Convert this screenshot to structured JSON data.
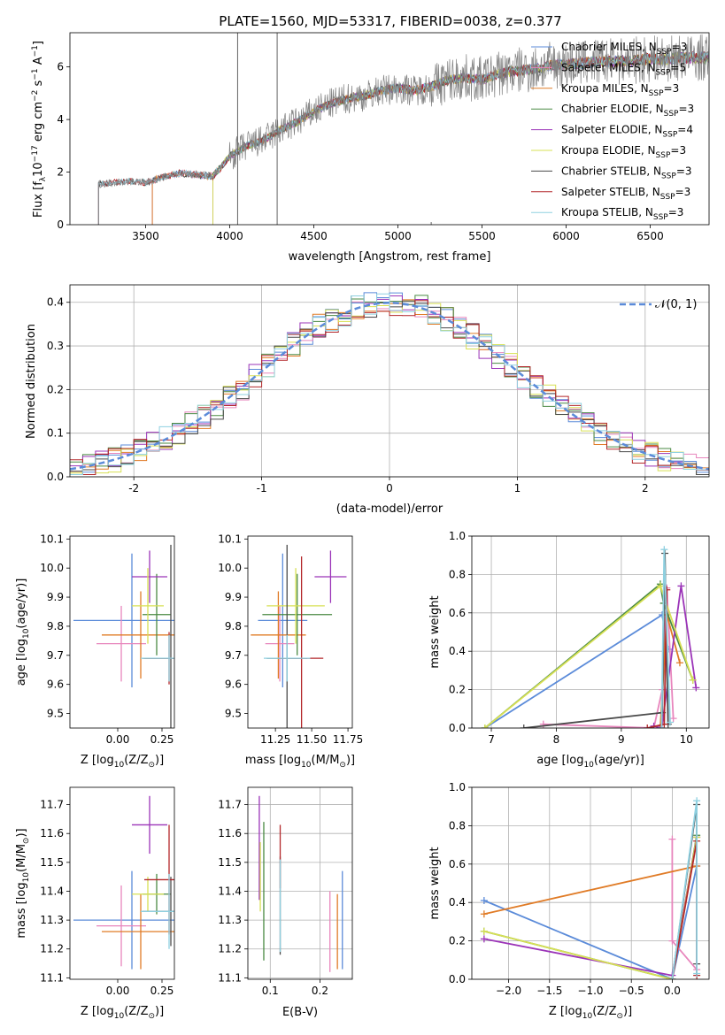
{
  "figure": {
    "title": "PLATE=1560, MJD=53317, FIBERID=0038, z=0.377"
  },
  "colors": {
    "Chabrier MILES": "#5b8bd9",
    "Salpeter MILES": "#e886bd",
    "Kroupa MILES": "#e07b26",
    "Chabrier ELODIE": "#4a8a43",
    "Salpeter ELODIE": "#9b34b8",
    "Kroupa ELODIE": "#d7e054",
    "Chabrier STELIB": "#4a4a4a",
    "Salpeter STELIB": "#b3272a",
    "Kroupa STELIB": "#8fd0e0",
    "data": "#808080",
    "normal": "#5b8bd9"
  },
  "chart_data": [
    {
      "id": "spectrum",
      "type": "line",
      "xlabel": "wavelength [Angstrom, rest frame]",
      "ylabel": "Flux [f$_\\lambda$10$^{-17}$ erg cm$^{-2}$ s$^{-1}$ A$^{-1}$]",
      "ylabel_parts": [
        "Flux [f",
        "λ",
        "10",
        "−17",
        " erg cm",
        "−2",
        " s",
        "−1",
        " A",
        "−1",
        "]"
      ],
      "xlim": [
        3050,
        6850
      ],
      "ylim": [
        0,
        7.3
      ],
      "xticks": [
        3500,
        4000,
        4500,
        5000,
        5500,
        6000,
        6500
      ],
      "yticks": [
        0,
        2,
        4,
        6
      ],
      "legend_position": "upper right",
      "legend": [
        {
          "label": "Chabrier MILES, N",
          "sub": "SSP",
          "eq": "=3",
          "color_key": "Chabrier MILES"
        },
        {
          "label": "Salpeter MILES, N",
          "sub": "SSP",
          "eq": "=5",
          "color_key": "Salpeter MILES"
        },
        {
          "label": "Kroupa MILES, N",
          "sub": "SSP",
          "eq": "=3",
          "color_key": "Kroupa MILES"
        },
        {
          "label": "Chabrier ELODIE, N",
          "sub": "SSP",
          "eq": "=3",
          "color_key": "Chabrier ELODIE"
        },
        {
          "label": "Salpeter ELODIE, N",
          "sub": "SSP",
          "eq": "=4",
          "color_key": "Salpeter ELODIE"
        },
        {
          "label": "Kroupa ELODIE, N",
          "sub": "SSP",
          "eq": "=3",
          "color_key": "Kroupa ELODIE"
        },
        {
          "label": "Chabrier STELIB, N",
          "sub": "SSP",
          "eq": "=3",
          "color_key": "Chabrier STELIB"
        },
        {
          "label": "Salpeter STELIB, N",
          "sub": "SSP",
          "eq": "=3",
          "color_key": "Salpeter STELIB"
        },
        {
          "label": "Kroupa STELIB, N",
          "sub": "SSP",
          "eq": "=3",
          "color_key": "Kroupa STELIB"
        }
      ],
      "model_start": {
        "Chabrier MILES": 3540,
        "Salpeter MILES": 3540,
        "Kroupa MILES": 3540,
        "Chabrier ELODIE": 3900,
        "Salpeter ELODIE": 3900,
        "Kroupa ELODIE": 3900,
        "Chabrier STELIB": 3220,
        "Salpeter STELIB": 3220,
        "Kroupa STELIB": 3220
      },
      "data_start": 3220,
      "data_end": 6850,
      "continuum_x": [
        3220,
        3300,
        3400,
        3500,
        3600,
        3700,
        3800,
        3900,
        3950,
        4000,
        4100,
        4200,
        4300,
        4400,
        4500,
        4600,
        4700,
        4800,
        4900,
        5000,
        5100,
        5200,
        5300,
        5400,
        5500,
        5600,
        5700,
        5800,
        5900,
        6000,
        6100,
        6200,
        6300,
        6400,
        6500,
        6600,
        6700,
        6850
      ],
      "continuum_y": [
        1.55,
        1.6,
        1.65,
        1.6,
        1.8,
        1.95,
        1.9,
        1.85,
        2.2,
        2.6,
        3.0,
        3.2,
        3.6,
        3.9,
        4.3,
        4.6,
        4.8,
        4.9,
        5.1,
        5.2,
        5.1,
        5.25,
        5.5,
        5.6,
        5.5,
        5.75,
        5.85,
        5.9,
        6.05,
        6.1,
        6.15,
        6.2,
        6.2,
        6.25,
        6.3,
        6.3,
        6.35,
        6.35
      ],
      "spikes": [
        {
          "x": 4047,
          "y": 7.3
        },
        {
          "x": 4282,
          "y": 7.3
        },
        {
          "x": 5198,
          "y": 0.1
        }
      ]
    },
    {
      "id": "residuals",
      "type": "histogram",
      "xlabel": "(data-model)/error",
      "ylabel": "Normed distribution",
      "xlim": [
        -2.5,
        2.5
      ],
      "ylim": [
        0,
        0.44
      ],
      "xticks": [
        -2,
        -1,
        0,
        1,
        2
      ],
      "yticks": [
        0.0,
        0.1,
        0.2,
        0.3,
        0.4
      ],
      "grid": true,
      "legend_label": "𝒩(0, 1)",
      "legend_position": "upper right",
      "bin_width": 0.1,
      "bin_start": -2.5,
      "base_values": [
        0.03,
        0.035,
        0.045,
        0.055,
        0.06,
        0.068,
        0.075,
        0.085,
        0.095,
        0.105,
        0.12,
        0.13,
        0.145,
        0.16,
        0.175,
        0.19,
        0.2,
        0.22,
        0.24,
        0.26,
        0.28,
        0.3,
        0.31,
        0.32,
        0.33,
        0.34,
        0.35,
        0.36,
        0.37,
        0.375,
        0.38,
        0.385,
        0.39,
        0.39,
        0.385,
        0.38,
        0.375,
        0.37,
        0.36,
        0.35,
        0.345,
        0.335,
        0.32,
        0.31,
        0.3,
        0.29,
        0.275,
        0.26,
        0.24,
        0.22,
        0.2
      ],
      "model_keys": [
        "Chabrier MILES",
        "Salpeter MILES",
        "Kroupa MILES",
        "Chabrier ELODIE",
        "Salpeter ELODIE",
        "Kroupa ELODIE",
        "Chabrier STELIB",
        "Salpeter STELIB",
        "Kroupa STELIB"
      ]
    },
    {
      "id": "age-vs-Z",
      "type": "errorbar",
      "xlabel": "Z [log$_{10}$(Z/Z$_\\odot$)]",
      "ylabel": "age  [log$_{10}$(age/yr)]",
      "xlim": [
        -0.27,
        0.32
      ],
      "ylim": [
        9.45,
        10.11
      ],
      "xticks": [
        0.0,
        0.25
      ],
      "xticklabels": [
        "0.00",
        "0.25"
      ],
      "yticks": [
        9.5,
        9.6,
        9.7,
        9.8,
        9.9,
        10.0,
        10.1
      ],
      "points": [
        {
          "model": "Chabrier MILES",
          "x": 0.08,
          "xerr": 0.33,
          "y": 9.82,
          "yerr": 0.23
        },
        {
          "model": "Salpeter MILES",
          "x": 0.02,
          "xerr": 0.14,
          "y": 9.74,
          "yerr": 0.13
        },
        {
          "model": "Kroupa MILES",
          "x": 0.13,
          "xerr": 0.22,
          "y": 9.77,
          "yerr": 0.15
        },
        {
          "model": "Chabrier ELODIE",
          "x": 0.22,
          "xerr": 0.08,
          "y": 9.84,
          "yerr": 0.14
        },
        {
          "model": "Salpeter ELODIE",
          "x": 0.18,
          "xerr": 0.1,
          "y": 9.97,
          "yerr": 0.09
        },
        {
          "model": "Kroupa ELODIE",
          "x": 0.17,
          "xerr": 0.09,
          "y": 9.87,
          "yerr": 0.13
        },
        {
          "model": "Chabrier STELIB",
          "x": 0.3,
          "xerr": 0.16,
          "y": 9.69,
          "yerr": 0.39
        },
        {
          "model": "Salpeter STELIB",
          "x": 0.29,
          "xerr": 0.14,
          "y": 9.69,
          "yerr": 0.09
        },
        {
          "model": "Kroupa STELIB",
          "x": 0.29,
          "xerr": 0.16,
          "y": 9.69,
          "yerr": 0.08
        }
      ]
    },
    {
      "id": "age-vs-mass",
      "type": "errorbar",
      "xlabel": "mass [log$_{10}$(M/M$_\\odot$)]",
      "xlim": [
        11.06,
        11.78
      ],
      "ylim": [
        9.45,
        10.11
      ],
      "xticks": [
        11.25,
        11.5,
        11.75
      ],
      "xticklabels": [
        "11.25",
        "11.50",
        "11.75"
      ],
      "yticks": [
        9.5,
        9.6,
        9.7,
        9.8,
        9.9,
        10.0,
        10.1
      ],
      "points": [
        {
          "model": "Chabrier MILES",
          "x": 11.3,
          "xerr": 0.17,
          "y": 9.82,
          "yerr": 0.23
        },
        {
          "model": "Salpeter MILES",
          "x": 11.28,
          "xerr": 0.1,
          "y": 9.74,
          "yerr": 0.13
        },
        {
          "model": "Kroupa MILES",
          "x": 11.27,
          "xerr": 0.19,
          "y": 9.77,
          "yerr": 0.15
        },
        {
          "model": "Chabrier ELODIE",
          "x": 11.4,
          "xerr": 0.24,
          "y": 9.84,
          "yerr": 0.14
        },
        {
          "model": "Salpeter ELODIE",
          "x": 11.63,
          "xerr": 0.11,
          "y": 9.97,
          "yerr": 0.09
        },
        {
          "model": "Kroupa ELODIE",
          "x": 11.39,
          "xerr": 0.2,
          "y": 9.87,
          "yerr": 0.13
        },
        {
          "model": "Chabrier STELIB",
          "x": 11.33,
          "xerr": 0.14,
          "y": 9.69,
          "yerr": 0.39
        },
        {
          "model": "Salpeter STELIB",
          "x": 11.43,
          "xerr": 0.15,
          "y": 9.69,
          "yerr": 0.35
        },
        {
          "model": "Kroupa STELIB",
          "x": 11.33,
          "xerr": 0.16,
          "y": 9.69,
          "yerr": 0.08
        }
      ]
    },
    {
      "id": "weight-vs-age",
      "type": "line",
      "xlabel": "age  [log$_{10}$(age/yr)]",
      "ylabel": "mass weight",
      "xlim": [
        6.7,
        10.35
      ],
      "ylim": [
        0.0,
        1.0
      ],
      "xticks": [
        7,
        8,
        9,
        10
      ],
      "yticks": [
        0.0,
        0.2,
        0.4,
        0.6,
        0.8,
        1.0
      ],
      "grid": true,
      "series": [
        {
          "model": "Chabrier MILES",
          "x": [
            6.9,
            9.63,
            9.72
          ],
          "y": [
            0.0,
            0.59,
            0.41
          ]
        },
        {
          "model": "Salpeter MILES",
          "x": [
            7.8,
            9.5,
            9.63,
            9.7,
            9.8
          ],
          "y": [
            0.02,
            0.0,
            0.2,
            0.73,
            0.05
          ]
        },
        {
          "model": "Kroupa MILES",
          "x": [
            9.6,
            9.7,
            9.9
          ],
          "y": [
            0.0,
            0.59,
            0.34
          ]
        },
        {
          "model": "Chabrier ELODIE",
          "x": [
            6.9,
            9.6,
            9.65,
            10.1
          ],
          "y": [
            0.0,
            0.75,
            0.65,
            0.25
          ]
        },
        {
          "model": "Salpeter ELODIE",
          "x": [
            9.5,
            9.62,
            9.92,
            10.15
          ],
          "y": [
            0.01,
            0.0,
            0.74,
            0.21
          ]
        },
        {
          "model": "Kroupa ELODIE",
          "x": [
            6.9,
            9.6,
            10.1
          ],
          "y": [
            0.0,
            0.74,
            0.25
          ]
        },
        {
          "model": "Chabrier STELIB",
          "x": [
            7.5,
            9.63,
            9.67,
            9.72
          ],
          "y": [
            0.0,
            0.08,
            0.91,
            0.02
          ]
        },
        {
          "model": "Salpeter STELIB",
          "x": [
            9.4,
            9.66,
            9.7
          ],
          "y": [
            0.0,
            0.02,
            0.72
          ]
        },
        {
          "model": "Kroupa STELIB",
          "x": [
            9.62,
            9.66,
            9.75
          ],
          "y": [
            0.0,
            0.93,
            0.03
          ]
        }
      ]
    },
    {
      "id": "mass-vs-Z",
      "type": "errorbar",
      "xlabel": "Z [log$_{10}$(Z/Z$_\\odot$)]",
      "ylabel": "mass [log$_{10}$(M/M$_\\odot$)]",
      "xlim": [
        -0.27,
        0.32
      ],
      "ylim": [
        11.095,
        11.76
      ],
      "xticks": [
        0.0,
        0.25
      ],
      "xticklabels": [
        "0.00",
        "0.25"
      ],
      "yticks": [
        11.1,
        11.2,
        11.3,
        11.4,
        11.5,
        11.6,
        11.7
      ],
      "points": [
        {
          "model": "Chabrier MILES",
          "x": 0.08,
          "xerr": 0.33,
          "y": 11.3,
          "yerr": 0.17
        },
        {
          "model": "Salpeter MILES",
          "x": 0.02,
          "xerr": 0.14,
          "y": 11.28,
          "yerr": 0.14
        },
        {
          "model": "Kroupa MILES",
          "x": 0.13,
          "xerr": 0.22,
          "y": 11.26,
          "yerr": 0.13
        },
        {
          "model": "Chabrier ELODIE",
          "x": 0.22,
          "xerr": 0.08,
          "y": 11.39,
          "yerr": 0.07
        },
        {
          "model": "Salpeter ELODIE",
          "x": 0.18,
          "xerr": 0.1,
          "y": 11.63,
          "yerr": 0.1
        },
        {
          "model": "Kroupa ELODIE",
          "x": 0.17,
          "xerr": 0.09,
          "y": 11.39,
          "yerr": 0.06
        },
        {
          "model": "Chabrier STELIB",
          "x": 0.3,
          "xerr": 0.16,
          "y": 11.33,
          "yerr": 0.12
        },
        {
          "model": "Salpeter STELIB",
          "x": 0.29,
          "xerr": 0.14,
          "y": 11.44,
          "yerr": 0.19
        },
        {
          "model": "Kroupa STELIB",
          "x": 0.29,
          "xerr": 0.16,
          "y": 11.33,
          "yerr": 0.13
        }
      ]
    },
    {
      "id": "mass-vs-EBV",
      "type": "errorbar",
      "xlabel": "E(B-V)",
      "xlim": [
        0.055,
        0.265
      ],
      "ylim": [
        11.095,
        11.76
      ],
      "xticks": [
        0.1,
        0.2
      ],
      "xticklabels": [
        "0.1",
        "0.2"
      ],
      "yticks": [
        11.1,
        11.2,
        11.3,
        11.4,
        11.5,
        11.6,
        11.7
      ],
      "grid": true,
      "points": [
        {
          "model": "Chabrier MILES",
          "x": 0.245,
          "xerr": 0.0,
          "y": 11.3,
          "yerr": 0.17
        },
        {
          "model": "Salpeter MILES",
          "x": 0.22,
          "xerr": 0.0,
          "y": 11.26,
          "yerr": 0.14
        },
        {
          "model": "Kroupa MILES",
          "x": 0.235,
          "xerr": 0.0,
          "y": 11.26,
          "yerr": 0.13
        },
        {
          "model": "Chabrier ELODIE",
          "x": 0.087,
          "xerr": 0.0,
          "y": 11.4,
          "yerr": 0.24
        },
        {
          "model": "Salpeter ELODIE",
          "x": 0.078,
          "xerr": 0.0,
          "y": 11.55,
          "yerr": 0.18
        },
        {
          "model": "Kroupa ELODIE",
          "x": 0.08,
          "xerr": 0.0,
          "y": 11.45,
          "yerr": 0.12
        },
        {
          "model": "Chabrier STELIB",
          "x": 0.12,
          "xerr": 0.0,
          "y": 11.35,
          "yerr": 0.17
        },
        {
          "model": "Salpeter STELIB",
          "x": 0.12,
          "xerr": 0.0,
          "y": 11.52,
          "yerr": 0.11
        },
        {
          "model": "Kroupa STELIB",
          "x": 0.12,
          "xerr": 0.0,
          "y": 11.35,
          "yerr": 0.16
        }
      ]
    },
    {
      "id": "weight-vs-Z",
      "type": "line",
      "xlabel": "Z [log$_{10}$(Z/Z$_\\odot$)]",
      "ylabel": "mass weight",
      "xlim": [
        -2.45,
        0.45
      ],
      "ylim": [
        0.0,
        1.0
      ],
      "xticks": [
        -2.0,
        -1.5,
        -1.0,
        -0.5,
        0.0
      ],
      "xticklabels": [
        "−2.0",
        "−1.5",
        "−1.0",
        "−0.5",
        "0.0"
      ],
      "yticks": [
        0.0,
        0.2,
        0.4,
        0.6,
        0.8,
        1.0
      ],
      "grid": true,
      "series": [
        {
          "model": "Chabrier MILES",
          "x": [
            -2.3,
            0.0,
            0.3
          ],
          "y": [
            0.41,
            0.0,
            0.59
          ]
        },
        {
          "model": "Salpeter MILES",
          "x": [
            0.0,
            0.0,
            0.3
          ],
          "y": [
            0.73,
            0.2,
            0.05
          ]
        },
        {
          "model": "Kroupa MILES",
          "x": [
            -2.3,
            0.3
          ],
          "y": [
            0.34,
            0.59
          ]
        },
        {
          "model": "Chabrier ELODIE",
          "x": [
            -2.3,
            0.0,
            0.3
          ],
          "y": [
            0.25,
            0.0,
            0.75
          ]
        },
        {
          "model": "Salpeter ELODIE",
          "x": [
            -2.3,
            0.0,
            0.3
          ],
          "y": [
            0.21,
            0.02,
            0.74
          ]
        },
        {
          "model": "Kroupa ELODIE",
          "x": [
            -2.3,
            0.0,
            0.3
          ],
          "y": [
            0.25,
            0.0,
            0.74
          ]
        },
        {
          "model": "Chabrier STELIB",
          "x": [
            0.0,
            0.3,
            0.3
          ],
          "y": [
            0.0,
            0.91,
            0.08
          ]
        },
        {
          "model": "Salpeter STELIB",
          "x": [
            0.0,
            0.3,
            0.3
          ],
          "y": [
            0.0,
            0.72,
            0.02
          ]
        },
        {
          "model": "Kroupa STELIB",
          "x": [
            0.0,
            0.3,
            0.3
          ],
          "y": [
            0.0,
            0.93,
            0.03
          ]
        }
      ]
    }
  ]
}
